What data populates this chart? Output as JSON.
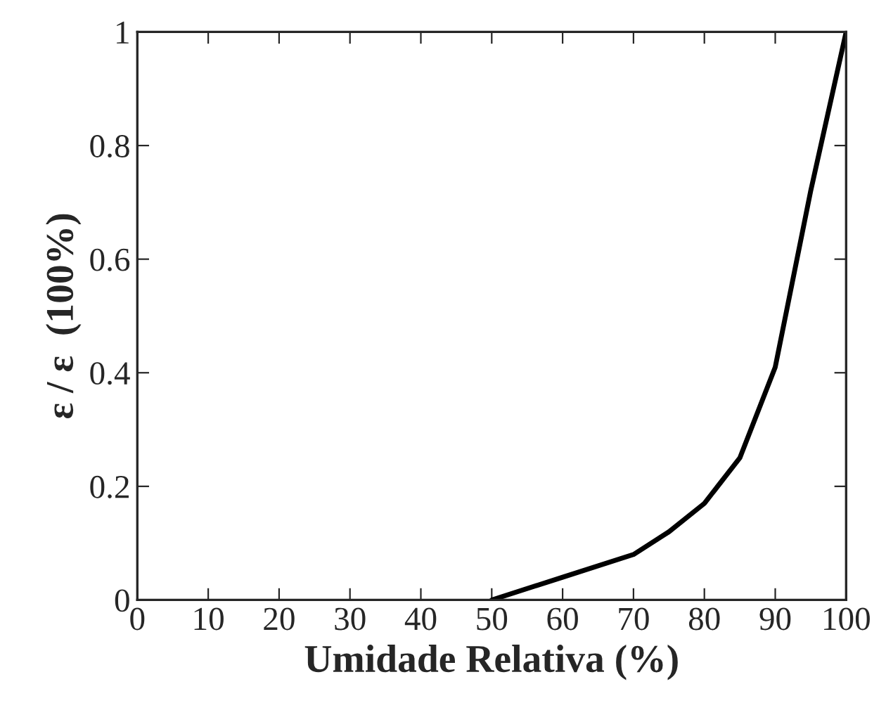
{
  "chart_data": {
    "type": "line",
    "xlabel": "Umidade Relativa (%)",
    "ylabel": "ε / ε  (100%)",
    "x": [
      50,
      60,
      70,
      75,
      80,
      85,
      90,
      95,
      100
    ],
    "series": [
      {
        "color": "#000000",
        "values": [
          0,
          0.04,
          0.08,
          0.12,
          0.17,
          0.25,
          0.41,
          0.72,
          1.0
        ]
      }
    ],
    "xlim": [
      0,
      100
    ],
    "ylim": [
      0,
      1
    ],
    "xticks": [
      0,
      10,
      20,
      30,
      40,
      50,
      60,
      70,
      80,
      90,
      100
    ],
    "yticks": [
      0,
      0.2,
      0.4,
      0.6,
      0.8,
      1
    ],
    "grid": false,
    "line_style": "solid",
    "marker": "none"
  }
}
